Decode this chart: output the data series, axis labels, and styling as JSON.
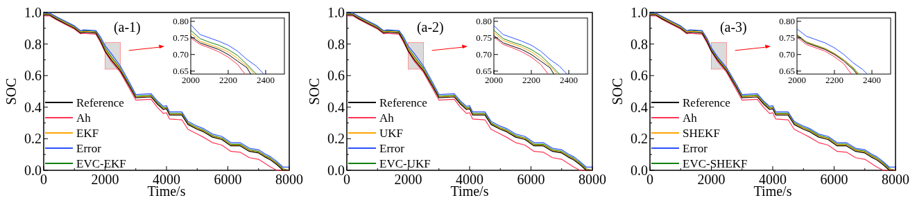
{
  "chart_data": [
    {
      "type": "line",
      "xlabel": "Time/s",
      "ylabel": "SOC",
      "annotations": [
        "(a-1)"
      ],
      "legend": "bottom left",
      "xlim": [
        0,
        8000
      ],
      "ylim": [
        0,
        1
      ],
      "xticks": [
        0,
        {
          "value": 1000,
          "label": null
        },
        2000,
        {
          "value": 3000,
          "label": null
        },
        4000,
        {
          "value": 5000,
          "label": null
        },
        6000,
        {
          "value": 7000,
          "label": null
        },
        8000
      ],
      "yticks": [
        {
          "value": 0,
          "label": "0.0"
        },
        {
          "value": 0.1,
          "label": null
        },
        {
          "value": 0.2,
          "label": "0.2"
        },
        {
          "value": 0.3,
          "label": null
        },
        {
          "value": 0.4,
          "label": "0.4"
        },
        {
          "value": 0.5,
          "label": null
        },
        {
          "value": 0.6,
          "label": "0.6"
        },
        {
          "value": 0.7,
          "label": null
        },
        {
          "value": 0.8,
          "label": "0.8"
        },
        {
          "value": 0.9,
          "label": null
        },
        {
          "value": 1,
          "label": "1.0"
        }
      ],
      "x": [
        0,
        200,
        400,
        700,
        1000,
        1200,
        1300,
        1700,
        1850,
        2000,
        2200,
        2500,
        2800,
        3000,
        3500,
        3700,
        3900,
        4000,
        4100,
        4500,
        4700,
        5000,
        5200,
        5500,
        5800,
        6100,
        6400,
        6700,
        7000,
        7200,
        7400,
        7600,
        7800,
        8000
      ],
      "series": [
        {
          "name": "Reference",
          "color": "#000000",
          "values": [
            0.984,
            0.984,
            0.96,
            0.93,
            0.9,
            0.87,
            0.875,
            0.87,
            0.82,
            0.755,
            0.7,
            0.63,
            0.53,
            0.46,
            0.465,
            0.42,
            0.385,
            0.39,
            0.35,
            0.35,
            0.29,
            0.26,
            0.245,
            0.21,
            0.195,
            0.155,
            0.155,
            0.12,
            0.11,
            0.085,
            0.065,
            0.035,
            0,
            0
          ]
        },
        {
          "name": "Ah",
          "color": "#ff3355",
          "values": [
            0.978,
            0.978,
            0.955,
            0.925,
            0.895,
            0.865,
            0.868,
            0.862,
            0.81,
            0.75,
            0.69,
            0.62,
            0.515,
            0.445,
            0.45,
            0.4,
            0.36,
            0.365,
            0.325,
            0.32,
            0.26,
            0.23,
            0.21,
            0.175,
            0.16,
            0.12,
            0.115,
            0.08,
            0.07,
            0.045,
            0.02,
            0,
            0,
            0
          ]
        },
        {
          "name": "EKF",
          "color": "#ffa500",
          "values": [
            0.989,
            0.989,
            0.965,
            0.935,
            0.905,
            0.875,
            0.88,
            0.875,
            0.825,
            0.765,
            0.712,
            0.637,
            0.535,
            0.465,
            0.47,
            0.425,
            0.39,
            0.395,
            0.355,
            0.355,
            0.295,
            0.265,
            0.25,
            0.215,
            0.2,
            0.16,
            0.16,
            0.125,
            0.115,
            0.09,
            0.07,
            0.04,
            0.005,
            0
          ]
        },
        {
          "name": "Error",
          "color": "#2a52ff",
          "values": [
            0.996,
            0.996,
            0.975,
            0.945,
            0.915,
            0.885,
            0.89,
            0.885,
            0.845,
            0.79,
            0.74,
            0.66,
            0.555,
            0.48,
            0.485,
            0.44,
            0.405,
            0.41,
            0.37,
            0.37,
            0.31,
            0.28,
            0.265,
            0.23,
            0.215,
            0.175,
            0.175,
            0.14,
            0.13,
            0.105,
            0.085,
            0.055,
            0.02,
            0.02
          ]
        },
        {
          "name": "EVC-EKF",
          "color": "#108010",
          "values": [
            0.994,
            0.994,
            0.97,
            0.94,
            0.91,
            0.88,
            0.885,
            0.88,
            0.832,
            0.775,
            0.72,
            0.645,
            0.542,
            0.47,
            0.475,
            0.43,
            0.395,
            0.4,
            0.36,
            0.36,
            0.3,
            0.27,
            0.255,
            0.22,
            0.205,
            0.165,
            0.165,
            0.13,
            0.12,
            0.095,
            0.075,
            0.045,
            0.01,
            0
          ]
        }
      ]
    },
    {
      "type": "line",
      "xlim": [
        2000,
        2500
      ],
      "ylim": [
        0.641,
        0.81
      ],
      "xticks": [
        2000,
        2200,
        2400
      ],
      "yticks": [
        {
          "value": 0.65,
          "label": "0.65"
        },
        {
          "value": 0.7,
          "label": "0.70"
        },
        {
          "value": 0.75,
          "label": "0.75"
        },
        {
          "value": 0.8,
          "label": "0.80"
        }
      ],
      "series": [
        {
          "color": "#000000",
          "x": [
            2000,
            2050,
            2100,
            2150,
            2200,
            2250,
            2300,
            2320
          ],
          "values": [
            0.755,
            0.735,
            0.725,
            0.715,
            0.7,
            0.68,
            0.66,
            0.641
          ]
        },
        {
          "color": "#ff3355",
          "x": [
            2000,
            2050,
            2100,
            2150,
            2200,
            2250,
            2290
          ],
          "values": [
            0.75,
            0.73,
            0.72,
            0.708,
            0.692,
            0.67,
            0.641
          ]
        },
        {
          "color": "#ffa500",
          "x": [
            2000,
            2050,
            2100,
            2150,
            2200,
            2250,
            2300,
            2340
          ],
          "values": [
            0.765,
            0.74,
            0.73,
            0.72,
            0.708,
            0.688,
            0.665,
            0.641
          ]
        },
        {
          "color": "#2a52ff",
          "x": [
            2000,
            2050,
            2100,
            2150,
            2200,
            2250,
            2300,
            2350,
            2390
          ],
          "values": [
            0.79,
            0.76,
            0.75,
            0.74,
            0.728,
            0.71,
            0.685,
            0.665,
            0.641
          ]
        },
        {
          "color": "#108010",
          "x": [
            2000,
            2050,
            2100,
            2150,
            2200,
            2250,
            2300,
            2350
          ],
          "values": [
            0.773,
            0.748,
            0.737,
            0.728,
            0.715,
            0.697,
            0.67,
            0.641
          ]
        }
      ]
    },
    {
      "type": "line",
      "xlabel": "Time/s",
      "ylabel": "SOC",
      "annotations": [
        "(a-2)"
      ],
      "legend": "bottom left",
      "xlim": [
        0,
        8000
      ],
      "ylim": [
        0,
        1
      ],
      "xticks": [
        0,
        {
          "value": 1000,
          "label": null
        },
        2000,
        {
          "value": 3000,
          "label": null
        },
        4000,
        {
          "value": 5000,
          "label": null
        },
        6000,
        {
          "value": 7000,
          "label": null
        },
        8000
      ],
      "yticks": [
        {
          "value": 0,
          "label": "0.0"
        },
        {
          "value": 0.1,
          "label": null
        },
        {
          "value": 0.2,
          "label": "0.2"
        },
        {
          "value": 0.3,
          "label": null
        },
        {
          "value": 0.4,
          "label": "0.4"
        },
        {
          "value": 0.5,
          "label": null
        },
        {
          "value": 0.6,
          "label": "0.6"
        },
        {
          "value": 0.7,
          "label": null
        },
        {
          "value": 0.8,
          "label": "0.8"
        },
        {
          "value": 0.9,
          "label": null
        },
        {
          "value": 1,
          "label": "1.0"
        }
      ],
      "x": [
        0,
        200,
        400,
        700,
        1000,
        1200,
        1300,
        1700,
        1850,
        2000,
        2200,
        2500,
        2800,
        3000,
        3500,
        3700,
        3900,
        4000,
        4100,
        4500,
        4700,
        5000,
        5200,
        5500,
        5800,
        6100,
        6400,
        6700,
        7000,
        7200,
        7400,
        7600,
        7800,
        8000
      ],
      "series": [
        {
          "name": "Reference",
          "color": "#000000",
          "values": [
            0.984,
            0.984,
            0.96,
            0.93,
            0.9,
            0.87,
            0.875,
            0.87,
            0.82,
            0.757,
            0.7,
            0.63,
            0.53,
            0.46,
            0.465,
            0.42,
            0.385,
            0.39,
            0.35,
            0.35,
            0.29,
            0.26,
            0.245,
            0.21,
            0.195,
            0.155,
            0.155,
            0.12,
            0.11,
            0.085,
            0.065,
            0.035,
            0,
            0
          ]
        },
        {
          "name": "Ah",
          "color": "#ff3355",
          "values": [
            0.978,
            0.978,
            0.955,
            0.925,
            0.895,
            0.865,
            0.868,
            0.862,
            0.81,
            0.753,
            0.69,
            0.62,
            0.515,
            0.445,
            0.45,
            0.4,
            0.36,
            0.365,
            0.325,
            0.32,
            0.26,
            0.23,
            0.21,
            0.175,
            0.16,
            0.12,
            0.115,
            0.08,
            0.07,
            0.045,
            0.02,
            0,
            0,
            0
          ]
        },
        {
          "name": "UKF",
          "color": "#ffa500",
          "values": [
            0.989,
            0.989,
            0.965,
            0.935,
            0.905,
            0.875,
            0.88,
            0.875,
            0.825,
            0.767,
            0.712,
            0.637,
            0.535,
            0.465,
            0.47,
            0.425,
            0.39,
            0.395,
            0.355,
            0.355,
            0.295,
            0.265,
            0.25,
            0.215,
            0.2,
            0.16,
            0.16,
            0.125,
            0.115,
            0.09,
            0.07,
            0.04,
            0.005,
            0
          ]
        },
        {
          "name": "Error",
          "color": "#2a52ff",
          "values": [
            0.996,
            0.996,
            0.975,
            0.945,
            0.915,
            0.885,
            0.89,
            0.885,
            0.845,
            0.787,
            0.74,
            0.66,
            0.555,
            0.48,
            0.485,
            0.44,
            0.405,
            0.41,
            0.37,
            0.37,
            0.31,
            0.28,
            0.265,
            0.23,
            0.215,
            0.175,
            0.175,
            0.14,
            0.13,
            0.105,
            0.085,
            0.055,
            0.02,
            0.02
          ]
        },
        {
          "name": "EVC-UKF",
          "color": "#108010",
          "values": [
            0.994,
            0.994,
            0.97,
            0.94,
            0.91,
            0.88,
            0.885,
            0.88,
            0.832,
            0.773,
            0.72,
            0.645,
            0.542,
            0.47,
            0.475,
            0.43,
            0.395,
            0.4,
            0.36,
            0.36,
            0.3,
            0.27,
            0.255,
            0.22,
            0.205,
            0.165,
            0.165,
            0.13,
            0.12,
            0.095,
            0.075,
            0.045,
            0.01,
            0
          ]
        }
      ]
    },
    {
      "type": "line",
      "xlim": [
        2000,
        2500
      ],
      "ylim": [
        0.641,
        0.81
      ],
      "xticks": [
        2000,
        2200,
        2400
      ],
      "yticks": [
        {
          "value": 0.65,
          "label": "0.65"
        },
        {
          "value": 0.7,
          "label": "0.70"
        },
        {
          "value": 0.75,
          "label": "0.75"
        },
        {
          "value": 0.8,
          "label": "0.80"
        }
      ],
      "series": [
        {
          "color": "#000000",
          "x": [
            2000,
            2050,
            2100,
            2150,
            2200,
            2250,
            2300,
            2320
          ],
          "values": [
            0.757,
            0.735,
            0.725,
            0.715,
            0.7,
            0.68,
            0.66,
            0.641
          ]
        },
        {
          "color": "#ff3355",
          "x": [
            2000,
            2050,
            2100,
            2150,
            2200,
            2250,
            2290
          ],
          "values": [
            0.753,
            0.73,
            0.72,
            0.708,
            0.692,
            0.67,
            0.641
          ]
        },
        {
          "color": "#ffa500",
          "x": [
            2000,
            2050,
            2100,
            2150,
            2200,
            2250,
            2300,
            2340
          ],
          "values": [
            0.767,
            0.742,
            0.732,
            0.722,
            0.708,
            0.688,
            0.665,
            0.641
          ]
        },
        {
          "color": "#2a52ff",
          "x": [
            2000,
            2050,
            2100,
            2150,
            2200,
            2250,
            2300,
            2350,
            2390
          ],
          "values": [
            0.787,
            0.76,
            0.75,
            0.74,
            0.728,
            0.71,
            0.685,
            0.665,
            0.641
          ]
        },
        {
          "color": "#108010",
          "x": [
            2000,
            2050,
            2100,
            2150,
            2200,
            2250,
            2300,
            2350
          ],
          "values": [
            0.773,
            0.748,
            0.737,
            0.728,
            0.715,
            0.697,
            0.67,
            0.641
          ]
        }
      ]
    },
    {
      "type": "line",
      "xlabel": "Time/s",
      "ylabel": "SOC",
      "annotations": [
        "(a-3)"
      ],
      "legend": "bottom left",
      "xlim": [
        0,
        8000
      ],
      "ylim": [
        0,
        1
      ],
      "xticks": [
        0,
        {
          "value": 1000,
          "label": null
        },
        2000,
        {
          "value": 3000,
          "label": null
        },
        4000,
        {
          "value": 5000,
          "label": null
        },
        6000,
        {
          "value": 7000,
          "label": null
        },
        8000
      ],
      "yticks": [
        {
          "value": 0,
          "label": "0.0"
        },
        {
          "value": 0.1,
          "label": null
        },
        {
          "value": 0.2,
          "label": "0.2"
        },
        {
          "value": 0.3,
          "label": null
        },
        {
          "value": 0.4,
          "label": "0.4"
        },
        {
          "value": 0.5,
          "label": null
        },
        {
          "value": 0.6,
          "label": "0.6"
        },
        {
          "value": 0.7,
          "label": null
        },
        {
          "value": 0.8,
          "label": "0.8"
        },
        {
          "value": 0.9,
          "label": null
        },
        {
          "value": 1,
          "label": "1.0"
        }
      ],
      "x": [
        0,
        200,
        400,
        700,
        1000,
        1200,
        1300,
        1700,
        1850,
        2000,
        2200,
        2500,
        2800,
        3000,
        3500,
        3700,
        3900,
        4000,
        4100,
        4500,
        4700,
        5000,
        5200,
        5500,
        5800,
        6100,
        6400,
        6700,
        7000,
        7200,
        7400,
        7600,
        7800,
        8000
      ],
      "series": [
        {
          "name": "Reference",
          "color": "#000000",
          "values": [
            0.984,
            0.984,
            0.96,
            0.93,
            0.9,
            0.87,
            0.875,
            0.87,
            0.82,
            0.757,
            0.7,
            0.63,
            0.53,
            0.46,
            0.465,
            0.42,
            0.385,
            0.39,
            0.35,
            0.35,
            0.29,
            0.26,
            0.245,
            0.21,
            0.195,
            0.155,
            0.155,
            0.12,
            0.11,
            0.085,
            0.065,
            0.035,
            0,
            0
          ]
        },
        {
          "name": "Ah",
          "color": "#ff3355",
          "values": [
            0.978,
            0.978,
            0.955,
            0.925,
            0.895,
            0.865,
            0.868,
            0.862,
            0.81,
            0.752,
            0.69,
            0.62,
            0.515,
            0.445,
            0.45,
            0.4,
            0.36,
            0.365,
            0.325,
            0.32,
            0.26,
            0.23,
            0.21,
            0.175,
            0.16,
            0.12,
            0.115,
            0.08,
            0.07,
            0.045,
            0.02,
            0,
            0,
            0
          ]
        },
        {
          "name": "SHEKF",
          "color": "#ffa500",
          "values": [
            0.989,
            0.989,
            0.966,
            0.936,
            0.906,
            0.876,
            0.881,
            0.876,
            0.826,
            0.762,
            0.706,
            0.636,
            0.536,
            0.466,
            0.471,
            0.426,
            0.391,
            0.396,
            0.356,
            0.356,
            0.296,
            0.266,
            0.251,
            0.216,
            0.201,
            0.161,
            0.161,
            0.126,
            0.116,
            0.091,
            0.071,
            0.041,
            0.006,
            0
          ]
        },
        {
          "name": "Error",
          "color": "#2a52ff",
          "values": [
            0.996,
            0.996,
            0.975,
            0.945,
            0.915,
            0.885,
            0.89,
            0.885,
            0.84,
            0.777,
            0.72,
            0.65,
            0.55,
            0.48,
            0.485,
            0.44,
            0.405,
            0.41,
            0.37,
            0.37,
            0.31,
            0.28,
            0.265,
            0.23,
            0.215,
            0.175,
            0.175,
            0.14,
            0.13,
            0.105,
            0.085,
            0.055,
            0.02,
            0.02
          ]
        },
        {
          "name": "EVC-SHEKF",
          "color": "#108010",
          "values": [
            0.994,
            0.994,
            0.971,
            0.941,
            0.911,
            0.881,
            0.886,
            0.881,
            0.831,
            0.767,
            0.711,
            0.641,
            0.541,
            0.471,
            0.476,
            0.431,
            0.396,
            0.401,
            0.361,
            0.361,
            0.301,
            0.271,
            0.256,
            0.221,
            0.206,
            0.166,
            0.166,
            0.131,
            0.121,
            0.096,
            0.076,
            0.046,
            0.011,
            0
          ]
        }
      ]
    },
    {
      "type": "line",
      "xlim": [
        2000,
        2500
      ],
      "ylim": [
        0.641,
        0.81
      ],
      "xticks": [
        2000,
        2200,
        2400
      ],
      "yticks": [
        {
          "value": 0.65,
          "label": "0.65"
        },
        {
          "value": 0.7,
          "label": "0.70"
        },
        {
          "value": 0.75,
          "label": "0.75"
        },
        {
          "value": 0.8,
          "label": "0.80"
        }
      ],
      "series": [
        {
          "color": "#000000",
          "x": [
            2000,
            2050,
            2100,
            2150,
            2200,
            2250,
            2300,
            2320
          ],
          "values": [
            0.757,
            0.735,
            0.725,
            0.715,
            0.7,
            0.68,
            0.655,
            0.641
          ]
        },
        {
          "color": "#ff3355",
          "x": [
            2000,
            2050,
            2100,
            2150,
            2200,
            2250,
            2290
          ],
          "values": [
            0.752,
            0.73,
            0.72,
            0.71,
            0.693,
            0.672,
            0.641
          ]
        },
        {
          "color": "#ffa500",
          "x": [
            2000,
            2050,
            2100,
            2150,
            2200,
            2250,
            2300,
            2325
          ],
          "values": [
            0.758,
            0.737,
            0.727,
            0.717,
            0.702,
            0.683,
            0.658,
            0.641
          ]
        },
        {
          "color": "#2a52ff",
          "x": [
            2000,
            2050,
            2100,
            2150,
            2200,
            2250,
            2300,
            2350,
            2375
          ],
          "values": [
            0.777,
            0.755,
            0.745,
            0.735,
            0.72,
            0.7,
            0.675,
            0.655,
            0.641
          ]
        },
        {
          "color": "#108010",
          "x": [
            2000,
            2050,
            2100,
            2150,
            2200,
            2250,
            2300,
            2330
          ],
          "values": [
            0.76,
            0.738,
            0.728,
            0.718,
            0.703,
            0.684,
            0.66,
            0.641
          ]
        }
      ]
    }
  ]
}
